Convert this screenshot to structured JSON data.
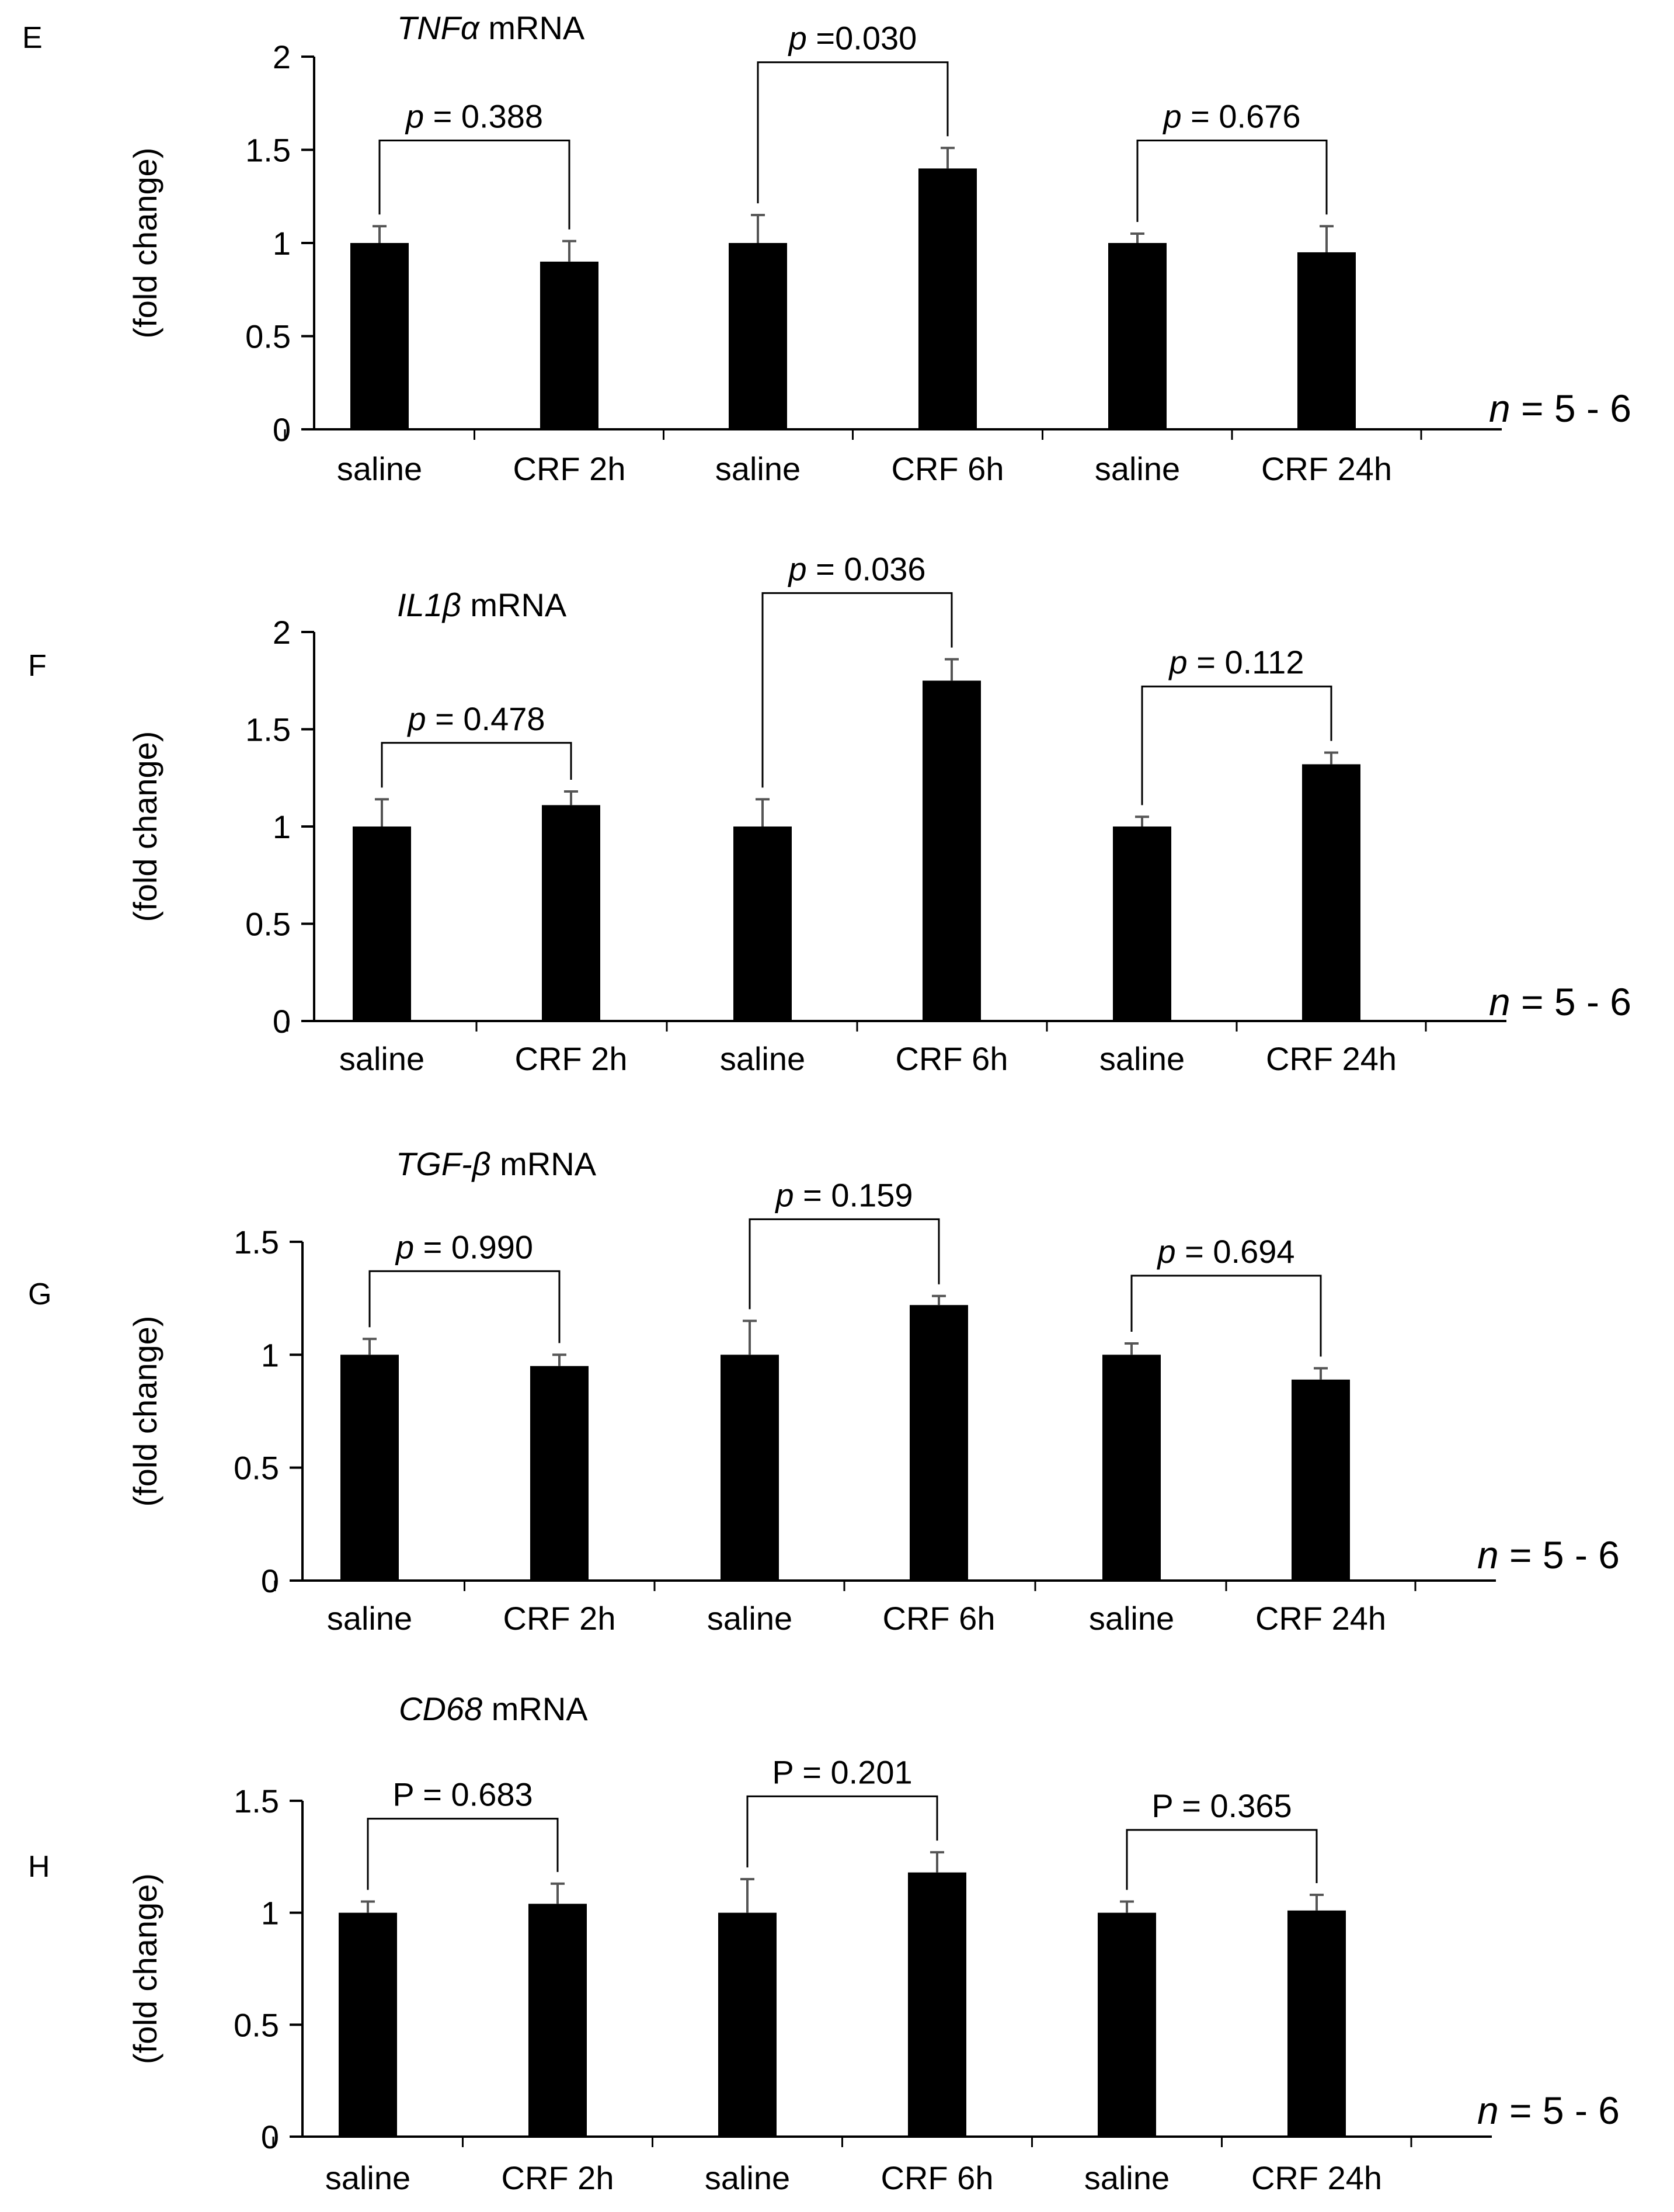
{
  "chart_data": [
    {
      "panel": "E",
      "type": "bar",
      "title_gene": "TNFα",
      "title_suffix": "mRNA",
      "ylabel": "(fold change)",
      "ylim": [
        0,
        2
      ],
      "yticks": [
        0,
        0.5,
        1,
        1.5,
        2
      ],
      "ytick_labels": [
        "0",
        "0.5",
        "1",
        "1.5",
        "2"
      ],
      "categories": [
        "saline",
        "CRF 2h",
        "saline",
        "CRF 6h",
        "saline",
        "CRF 24h"
      ],
      "values": [
        1.0,
        0.9,
        1.0,
        1.4,
        1.0,
        0.95
      ],
      "errors": [
        0.09,
        0.11,
        0.15,
        0.11,
        0.05,
        0.14
      ],
      "comparisons": [
        {
          "prefix": "p",
          "text": " = 0.388",
          "pair": [
            0,
            1
          ],
          "level": 1.55
        },
        {
          "prefix": "p",
          "text": " =0.030",
          "pair": [
            2,
            3
          ],
          "level": 1.97
        },
        {
          "prefix": "p",
          "text": " = 0.676",
          "pair": [
            4,
            5
          ],
          "level": 1.55
        }
      ],
      "n_label": {
        "prefix": "n",
        "text": " = 5 - 6"
      }
    },
    {
      "panel": "F",
      "type": "bar",
      "title_gene": "IL1β",
      "title_suffix": "mRNA",
      "ylabel": "(fold change)",
      "ylim": [
        0,
        2
      ],
      "yticks": [
        0,
        0.5,
        1,
        1.5,
        2
      ],
      "ytick_labels": [
        "0",
        "0.5",
        "1",
        "1.5",
        "2"
      ],
      "categories": [
        "saline",
        "CRF 2h",
        "saline",
        "CRF 6h",
        "saline",
        "CRF 24h"
      ],
      "values": [
        1.0,
        1.11,
        1.0,
        1.75,
        1.0,
        1.32
      ],
      "errors": [
        0.14,
        0.07,
        0.14,
        0.11,
        0.05,
        0.06
      ],
      "comparisons": [
        {
          "prefix": "p",
          "text": " = 0.478",
          "pair": [
            0,
            1
          ],
          "level": 1.43
        },
        {
          "prefix": "p",
          "text": " = 0.036",
          "pair": [
            2,
            3
          ],
          "level": 2.2
        },
        {
          "prefix": "p",
          "text": " = 0.112",
          "pair": [
            4,
            5
          ],
          "level": 1.72
        }
      ],
      "n_label": {
        "prefix": "n",
        "text": " = 5 - 6"
      }
    },
    {
      "panel": "G",
      "type": "bar",
      "title_gene": "TGF-β",
      "title_suffix": "mRNA",
      "ylabel": "(fold change)",
      "ylim": [
        0,
        1.5
      ],
      "yticks": [
        0,
        0.5,
        1,
        1.5
      ],
      "ytick_labels": [
        "0",
        "0.5",
        "1",
        "1.5"
      ],
      "categories": [
        "saline",
        "CRF 2h",
        "saline",
        "CRF 6h",
        "saline",
        "CRF 24h"
      ],
      "values": [
        1.0,
        0.95,
        1.0,
        1.22,
        1.0,
        0.89
      ],
      "errors": [
        0.07,
        0.05,
        0.15,
        0.04,
        0.05,
        0.05
      ],
      "comparisons": [
        {
          "prefix": "p",
          "text": " = 0.990",
          "pair": [
            0,
            1
          ],
          "level": 1.37
        },
        {
          "prefix": "p",
          "text": " = 0.159",
          "pair": [
            2,
            3
          ],
          "level": 1.6
        },
        {
          "prefix": "p",
          "text": " = 0.694",
          "pair": [
            4,
            5
          ],
          "level": 1.35
        }
      ],
      "n_label": {
        "prefix": "n",
        "text": " = 5 - 6"
      }
    },
    {
      "panel": "H",
      "type": "bar",
      "title_gene": "CD68",
      "title_suffix": "mRNA",
      "ylabel": "(fold change)",
      "ylim": [
        0,
        1.5
      ],
      "yticks": [
        0,
        0.5,
        1,
        1.5
      ],
      "ytick_labels": [
        "0",
        "0.5",
        "1",
        "1.5"
      ],
      "categories": [
        "saline",
        "CRF 2h",
        "saline",
        "CRF 6h",
        "saline",
        "CRF 24h"
      ],
      "values": [
        1.0,
        1.04,
        1.0,
        1.18,
        1.0,
        1.01
      ],
      "errors": [
        0.05,
        0.09,
        0.15,
        0.09,
        0.05,
        0.07
      ],
      "comparisons": [
        {
          "prefix": "",
          "text": "P = 0.683",
          "pair": [
            0,
            1
          ],
          "level": 1.42
        },
        {
          "prefix": "",
          "text": "P = 0.201",
          "pair": [
            2,
            3
          ],
          "level": 1.52
        },
        {
          "prefix": "",
          "text": "P = 0.365",
          "pair": [
            4,
            5
          ],
          "level": 1.37
        }
      ],
      "n_label": {
        "prefix": "n",
        "text": " = 5 - 6"
      }
    }
  ]
}
